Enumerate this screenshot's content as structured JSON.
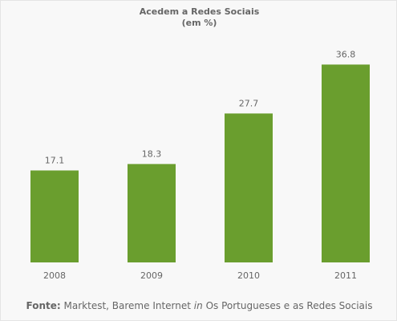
{
  "chart_data": {
    "type": "bar",
    "title": "Acedem a Redes Sociais",
    "subtitle": "(em %)",
    "categories": [
      "2008",
      "2009",
      "2010",
      "2011"
    ],
    "values": [
      17.1,
      18.3,
      27.7,
      36.8
    ],
    "value_labels": [
      "17.1",
      "18.3",
      "27.7",
      "36.8"
    ],
    "ylim": [
      0,
      40
    ],
    "grid": false,
    "bar_color": "#6a9e2e"
  },
  "source": {
    "prefix": "Fonte",
    "text_a": "Marktest, Bareme Internet ",
    "italic": "in",
    "text_b": " Os Portugueses e as Redes Sociais"
  }
}
